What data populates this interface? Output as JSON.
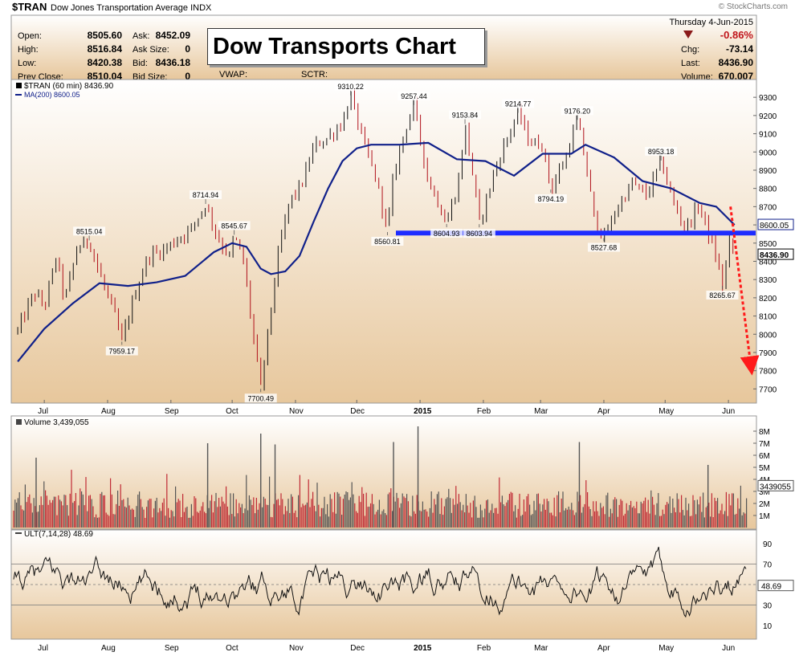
{
  "header": {
    "symbol": "$TRAN",
    "name": "Dow Jones Transportation Average",
    "exchange": "INDX",
    "credit": "© StockCharts.com",
    "date": "Thursday  4-Jun-2015",
    "change_pct": "-0.86%",
    "stats_left": [
      {
        "label": "Open:",
        "value": "8505.60"
      },
      {
        "label": "High:",
        "value": "8516.84"
      },
      {
        "label": "Low:",
        "value": "8420.38"
      },
      {
        "label": "Prev Close:",
        "value": "8510.04"
      }
    ],
    "stats_mid": [
      {
        "label": "Ask:",
        "value": "8452.09"
      },
      {
        "label": "Ask Size:",
        "value": "0"
      },
      {
        "label": "Bid:",
        "value": "8436.18"
      },
      {
        "label": "Bid Size:",
        "value": "0"
      }
    ],
    "vwap_label": "VWAP:",
    "sctr_label": "SCTR:",
    "stats_right": [
      {
        "label": "Chg:",
        "value": "-73.14"
      },
      {
        "label": "Last:",
        "value": "8436.90"
      },
      {
        "label": "Volume:",
        "value": "670,007"
      }
    ],
    "overlay_title": "Dow Transports Chart"
  },
  "colors": {
    "panel_bg_top": "#ffffff",
    "panel_bg_bottom": "#e7c79c",
    "ma_line": "#10208a",
    "support_line": "#1e2cff",
    "forecast_arrow": "#ff1a1a",
    "volume_up": "#c02a35",
    "volume_down": "#555555",
    "down_triangle": "#8b1a1a"
  },
  "chart_data": [
    {
      "type": "line",
      "series": [
        {
          "name": "$TRAN (60 min) 8436.90",
          "points": [
            [
              "2014-06-18",
              8020
            ],
            [
              "2014-06-26",
              8230
            ],
            [
              "2014-07-01",
              8150
            ],
            [
              "2014-07-07",
              8430
            ],
            [
              "2014-07-11",
              8180
            ],
            [
              "2014-07-17",
              8470
            ],
            [
              "2014-07-23",
              8515.04
            ],
            [
              "2014-07-29",
              8300
            ],
            [
              "2014-08-04",
              8120
            ],
            [
              "2014-08-08",
              7959.17
            ],
            [
              "2014-08-14",
              8210
            ],
            [
              "2014-08-21",
              8430
            ],
            [
              "2014-08-28",
              8460
            ],
            [
              "2014-09-04",
              8520
            ],
            [
              "2014-09-11",
              8580
            ],
            [
              "2014-09-18",
              8714.94
            ],
            [
              "2014-09-24",
              8530
            ],
            [
              "2014-09-30",
              8420
            ],
            [
              "2014-10-02",
              8545.67
            ],
            [
              "2014-10-07",
              8380
            ],
            [
              "2014-10-10",
              8100
            ],
            [
              "2014-10-15",
              7700.49
            ],
            [
              "2014-10-20",
              8140
            ],
            [
              "2014-10-24",
              8470
            ],
            [
              "2014-10-29",
              8730
            ],
            [
              "2014-11-04",
              8820
            ],
            [
              "2014-11-10",
              9030
            ],
            [
              "2014-11-17",
              9080
            ],
            [
              "2014-11-24",
              9160
            ],
            [
              "2014-11-28",
              9310.22
            ],
            [
              "2014-12-04",
              9060
            ],
            [
              "2014-12-09",
              8900
            ],
            [
              "2014-12-12",
              8780
            ],
            [
              "2014-12-16",
              8560.81
            ],
            [
              "2014-12-19",
              8870
            ],
            [
              "2014-12-24",
              9100
            ],
            [
              "2014-12-29",
              9257.44
            ],
            [
              "2015-01-05",
              8840
            ],
            [
              "2015-01-09",
              8750
            ],
            [
              "2015-01-14",
              8604.93
            ],
            [
              "2015-01-20",
              8850
            ],
            [
              "2015-01-23",
              9153.84
            ],
            [
              "2015-01-28",
              8780
            ],
            [
              "2015-01-30",
              8603.94
            ],
            [
              "2015-02-06",
              8880
            ],
            [
              "2015-02-12",
              9060
            ],
            [
              "2015-02-18",
              9214.77
            ],
            [
              "2015-02-24",
              9050
            ],
            [
              "2015-03-02",
              9040
            ],
            [
              "2015-03-06",
              8794.19
            ],
            [
              "2015-03-13",
              8960
            ],
            [
              "2015-03-19",
              9176.2
            ],
            [
              "2015-03-24",
              8880
            ],
            [
              "2015-03-27",
              8650
            ],
            [
              "2015-04-01",
              8527.68
            ],
            [
              "2015-04-08",
              8700
            ],
            [
              "2015-04-15",
              8830
            ],
            [
              "2015-04-22",
              8760
            ],
            [
              "2015-04-29",
              8953.18
            ],
            [
              "2015-05-05",
              8720
            ],
            [
              "2015-05-11",
              8580
            ],
            [
              "2015-05-18",
              8710
            ],
            [
              "2015-05-21",
              8590
            ],
            [
              "2015-05-26",
              8420
            ],
            [
              "2015-05-29",
              8265.67
            ],
            [
              "2015-06-02",
              8530
            ],
            [
              "2015-06-04",
              8436.9
            ]
          ]
        },
        {
          "name": "MA(200) 8600.05",
          "points": [
            [
              "2014-06-18",
              7850
            ],
            [
              "2014-07-01",
              8030
            ],
            [
              "2014-07-15",
              8170
            ],
            [
              "2014-07-28",
              8280
            ],
            [
              "2014-08-11",
              8265
            ],
            [
              "2014-08-25",
              8285
            ],
            [
              "2014-09-08",
              8320
            ],
            [
              "2014-09-22",
              8450
            ],
            [
              "2014-10-01",
              8500
            ],
            [
              "2014-10-08",
              8480
            ],
            [
              "2014-10-15",
              8360
            ],
            [
              "2014-10-20",
              8330
            ],
            [
              "2014-10-27",
              8345
            ],
            [
              "2014-11-03",
              8430
            ],
            [
              "2014-11-10",
              8620
            ],
            [
              "2014-11-17",
              8800
            ],
            [
              "2014-11-24",
              8950
            ],
            [
              "2014-12-01",
              9020
            ],
            [
              "2014-12-08",
              9040
            ],
            [
              "2014-12-22",
              9040
            ],
            [
              "2015-01-05",
              9050
            ],
            [
              "2015-01-19",
              8960
            ],
            [
              "2015-02-02",
              8950
            ],
            [
              "2015-02-16",
              8870
            ],
            [
              "2015-03-02",
              8990
            ],
            [
              "2015-03-16",
              8990
            ],
            [
              "2015-03-23",
              9040
            ],
            [
              "2015-04-06",
              8970
            ],
            [
              "2015-04-20",
              8840
            ],
            [
              "2015-05-04",
              8800
            ],
            [
              "2015-05-18",
              8720
            ],
            [
              "2015-05-26",
              8700
            ],
            [
              "2015-06-04",
              8600.05
            ]
          ]
        }
      ],
      "annotations": [
        {
          "label": "9310.22",
          "x": "2014-11-28",
          "y": 9310.22,
          "pos": "above"
        },
        {
          "label": "9257.44",
          "x": "2014-12-29",
          "y": 9257.44,
          "pos": "above"
        },
        {
          "label": "9214.77",
          "x": "2015-02-18",
          "y": 9214.77,
          "pos": "above"
        },
        {
          "label": "9176.20",
          "x": "2015-03-19",
          "y": 9176.2,
          "pos": "above"
        },
        {
          "label": "9153.84",
          "x": "2015-01-23",
          "y": 9153.84,
          "pos": "above"
        },
        {
          "label": "8953.18",
          "x": "2015-04-29",
          "y": 8953.18,
          "pos": "above"
        },
        {
          "label": "8794.19",
          "x": "2015-03-06",
          "y": 8794.19,
          "pos": "below"
        },
        {
          "label": "8714.94",
          "x": "2014-09-18",
          "y": 8714.94,
          "pos": "above"
        },
        {
          "label": "8545.67",
          "x": "2014-10-02",
          "y": 8545.67,
          "pos": "above"
        },
        {
          "label": "8515.04",
          "x": "2014-07-23",
          "y": 8515.04,
          "pos": "above"
        },
        {
          "label": "8560.81",
          "x": "2014-12-16",
          "y": 8560.81,
          "pos": "below"
        },
        {
          "label": "8604.93",
          "x": "2015-01-14",
          "y": 8604.93,
          "pos": "below"
        },
        {
          "label": "8603.94",
          "x": "2015-01-30",
          "y": 8603.94,
          "pos": "below"
        },
        {
          "label": "8527.68",
          "x": "2015-04-01",
          "y": 8527.68,
          "pos": "below"
        },
        {
          "label": "8265.67",
          "x": "2015-05-29",
          "y": 8265.67,
          "pos": "below"
        },
        {
          "label": "7959.17",
          "x": "2014-08-08",
          "y": 7959.17,
          "pos": "below"
        },
        {
          "label": "7700.49",
          "x": "2014-10-15",
          "y": 7700.49,
          "pos": "below"
        }
      ],
      "support_level": 8555,
      "forecast_arrow": {
        "from": [
          "2015-06-02",
          8700
        ],
        "to": [
          "2015-06-12",
          7800
        ]
      },
      "last_value_tags": [
        "8600.05",
        "8436.90"
      ],
      "yticks": [
        7700,
        7800,
        7900,
        8000,
        8100,
        8200,
        8300,
        8400,
        8500,
        8600,
        8700,
        8800,
        8900,
        9000,
        9100,
        9200,
        9300
      ],
      "ylim": [
        7640,
        9380
      ],
      "xlim": [
        "2014-06-16",
        "2015-06-10"
      ],
      "xticks": [
        {
          "label": "Jul",
          "x": "2014-07-01"
        },
        {
          "label": "Aug",
          "x": "2014-08-01"
        },
        {
          "label": "Sep",
          "x": "2014-09-01"
        },
        {
          "label": "Oct",
          "x": "2014-10-01"
        },
        {
          "label": "Nov",
          "x": "2014-11-01"
        },
        {
          "label": "Dec",
          "x": "2014-12-01"
        },
        {
          "label": "2015",
          "x": "2015-01-01"
        },
        {
          "label": "Feb",
          "x": "2015-02-01"
        },
        {
          "label": "Mar",
          "x": "2015-03-01"
        },
        {
          "label": "Apr",
          "x": "2015-04-01"
        },
        {
          "label": "May",
          "x": "2015-05-01"
        },
        {
          "label": "Jun",
          "x": "2015-06-01"
        }
      ],
      "grid": false,
      "legend": "top-left"
    },
    {
      "type": "bar",
      "title": "Volume 3,439,055",
      "last_value_tag": "3439055",
      "yticks": [
        {
          "label": "1M",
          "v": 1
        },
        {
          "label": "2M",
          "v": 2
        },
        {
          "label": "3M",
          "v": 3
        },
        {
          "label": "4M",
          "v": 4
        },
        {
          "label": "5M",
          "v": 5
        },
        {
          "label": "6M",
          "v": 6
        },
        {
          "label": "7M",
          "v": 7
        },
        {
          "label": "8M",
          "v": 8
        }
      ],
      "ylim": [
        0,
        8.6
      ],
      "spikes": [
        {
          "x": "2014-10-15",
          "v": 7.8
        },
        {
          "x": "2014-10-22",
          "v": 6.9
        },
        {
          "x": "2014-12-19",
          "v": 7.1
        },
        {
          "x": "2014-12-31",
          "v": 8.4
        },
        {
          "x": "2014-09-19",
          "v": 7.0
        },
        {
          "x": "2015-03-20",
          "v": 7.1
        },
        {
          "x": "2014-06-27",
          "v": 5.8
        },
        {
          "x": "2015-05-22",
          "v": 5.2
        }
      ]
    },
    {
      "type": "line",
      "title": "ULT(7,14,28) 48.69",
      "last_value_tag": "48.69",
      "yticks": [
        10,
        30,
        50,
        70,
        90
      ],
      "reference_lines": [
        30,
        50,
        70
      ],
      "ylim": [
        0,
        100
      ]
    }
  ]
}
